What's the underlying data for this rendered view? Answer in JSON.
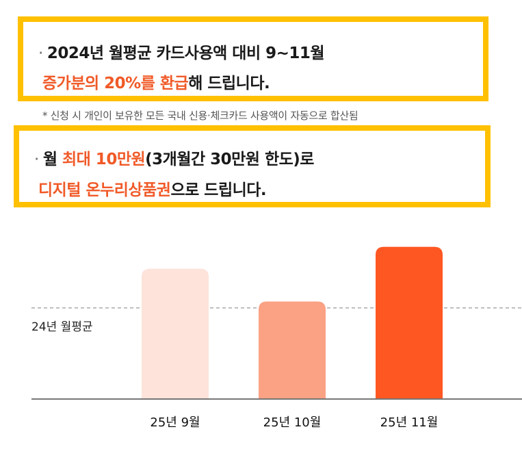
{
  "box1": {
    "line1": {
      "bullet": "·",
      "text": "2024년 월평균 카드사용액 대비 9~11월"
    },
    "line2": {
      "highlight": "증가분의 20%를 환급",
      "rest": "해 드립니다."
    }
  },
  "note": "* 신청 시 개인이 보유한 모든 국내 신용·체크카드 사용액이 자동으로 합산됨",
  "box2": {
    "line1": {
      "bullet": "·",
      "pre": "월 ",
      "highlight": "최대 10만원",
      "rest": "(3개월간 30만원 한도)로"
    },
    "line2": {
      "highlight": "디지털 온누리상품권",
      "rest": "으로 드립니다."
    }
  },
  "colors": {
    "highlight": "#F05A28",
    "box_border": "#FFC000",
    "bar_colors": [
      "#FDE3DA",
      "#FBA184",
      "#FF5722"
    ]
  },
  "chart_data": {
    "type": "bar",
    "categories": [
      "25년 9월",
      "25년 10월",
      "25년 11월"
    ],
    "values": [
      1.43,
      1.07,
      1.67
    ],
    "reference_line": {
      "label": "24년 월평균",
      "value": 1.0
    },
    "ylim": [
      0,
      1.9
    ],
    "grid": false,
    "title": "",
    "xlabel": "",
    "ylabel": ""
  }
}
